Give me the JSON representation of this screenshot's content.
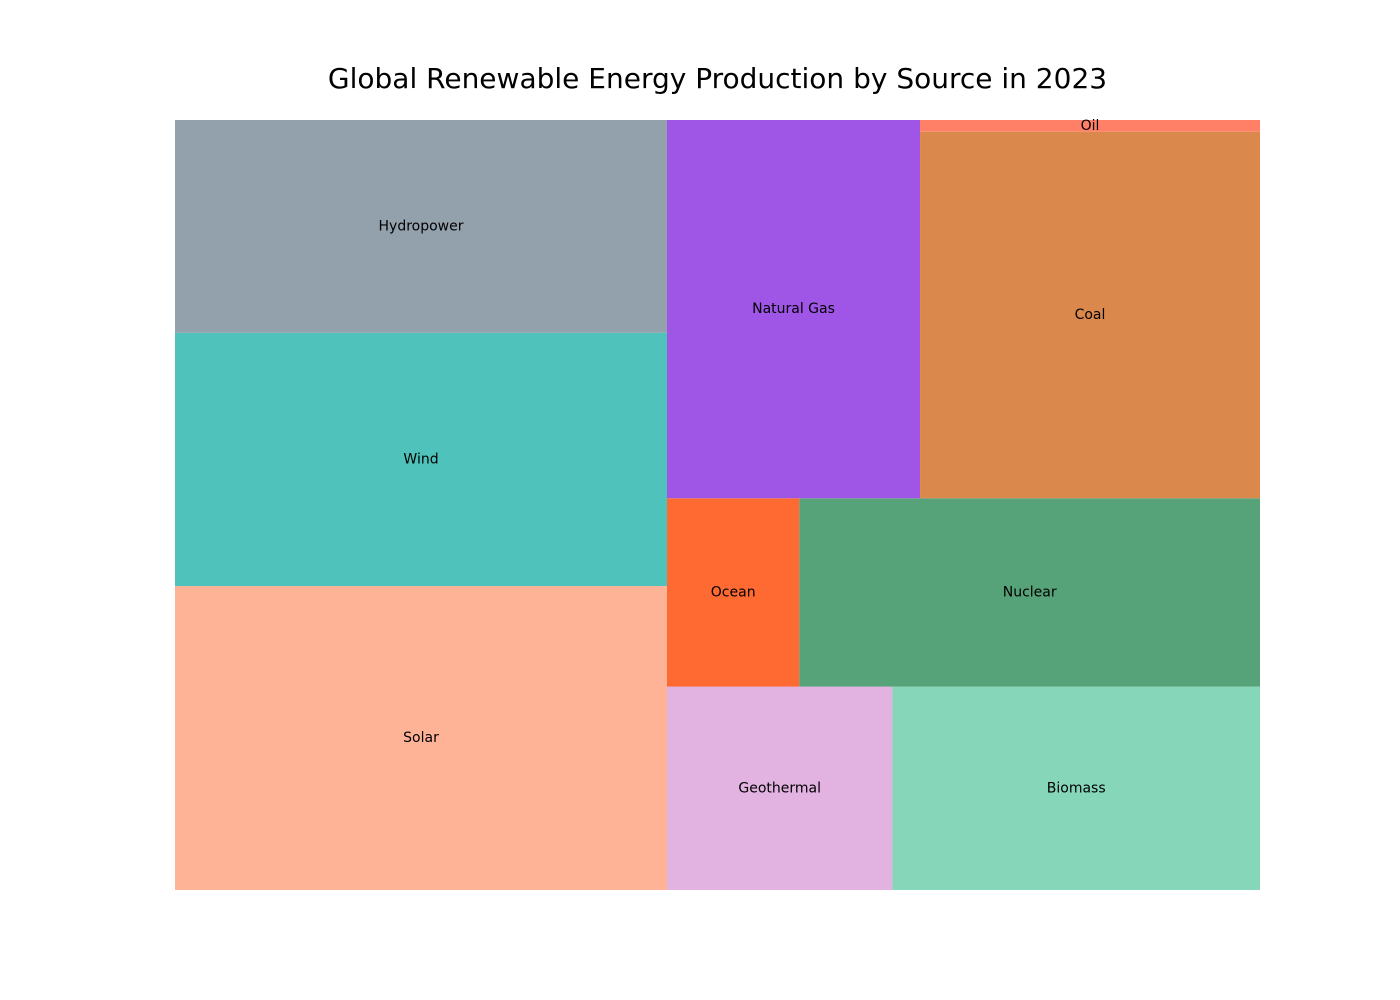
{
  "chart_data": {
    "type": "treemap",
    "title": "Global Renewable Energy Production by Source in 2023",
    "xlabel": "",
    "ylabel": "",
    "grid": false,
    "legend": "none",
    "categories": [
      "Solar",
      "Wind",
      "Hydropower",
      "Natural Gas",
      "Coal",
      "Oil",
      "Ocean",
      "Nuclear",
      "Geothermal",
      "Biomass"
    ],
    "values": [
      1500,
      1250,
      1050,
      960,
      1250,
      40,
      250,
      870,
      460,
      750
    ],
    "colors": [
      "#FFB396",
      "#4FC3BB",
      "#93A1AD",
      "#9F55E5",
      "#DB884C",
      "#FF8066",
      "#FF6A33",
      "#57A379",
      "#E2B2E1",
      "#86D6BA"
    ]
  }
}
